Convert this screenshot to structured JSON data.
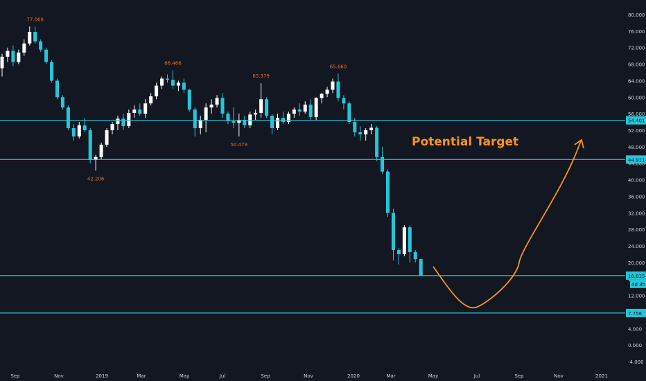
{
  "colors": {
    "background": "#131722",
    "up": "#ffffff",
    "down": "#26c6da",
    "level_line": "#26c6da",
    "annotation": "#f7931a",
    "price_label_bg": "#26c6da",
    "axis_text": "#d1d4dc",
    "peak_label": "#e0702a"
  },
  "chart_data": {
    "type": "candlestick",
    "title": "",
    "xlabel": "",
    "ylabel": "",
    "ylim": [
      -5,
      82
    ],
    "x_ticks": [
      "Sep",
      "Nov",
      "2019",
      "Mar",
      "May",
      "Jul",
      "Sep",
      "Nov",
      "2020",
      "Mar",
      "May",
      "Jul",
      "Sep",
      "Nov",
      "2021"
    ],
    "y_ticks": [
      "80.000",
      "76.000",
      "72.000",
      "68.000",
      "64.000",
      "60.000",
      "56.000",
      "52.000",
      "48.000",
      "44.000",
      "40.000",
      "36.000",
      "32.000",
      "28.000",
      "24.000",
      "20.000",
      "16.000",
      "12.000",
      "8.000",
      "4.000",
      "0.000",
      "-4.000"
    ],
    "candles": [
      {
        "o": 67.0,
        "h": 70.5,
        "l": 65.0,
        "c": 69.8
      },
      {
        "o": 69.8,
        "h": 72.0,
        "l": 68.5,
        "c": 71.2
      },
      {
        "o": 71.2,
        "h": 72.5,
        "l": 67.5,
        "c": 68.5
      },
      {
        "o": 68.5,
        "h": 71.5,
        "l": 68.0,
        "c": 70.8
      },
      {
        "o": 70.8,
        "h": 74.0,
        "l": 70.0,
        "c": 73.0
      },
      {
        "o": 73.0,
        "h": 77.1,
        "l": 72.5,
        "c": 75.8
      },
      {
        "o": 75.8,
        "h": 77.1,
        "l": 73.0,
        "c": 73.5
      },
      {
        "o": 73.5,
        "h": 74.0,
        "l": 71.0,
        "c": 71.5
      },
      {
        "o": 71.5,
        "h": 72.0,
        "l": 68.0,
        "c": 68.5
      },
      {
        "o": 68.5,
        "h": 69.0,
        "l": 63.5,
        "c": 64.0
      },
      {
        "o": 64.0,
        "h": 64.5,
        "l": 59.5,
        "c": 60.0
      },
      {
        "o": 60.0,
        "h": 60.5,
        "l": 57.0,
        "c": 57.5
      },
      {
        "o": 57.5,
        "h": 58.0,
        "l": 52.0,
        "c": 52.5
      },
      {
        "o": 52.5,
        "h": 53.5,
        "l": 49.5,
        "c": 50.5
      },
      {
        "o": 50.5,
        "h": 54.0,
        "l": 50.0,
        "c": 53.2
      },
      {
        "o": 53.2,
        "h": 55.0,
        "l": 51.5,
        "c": 52.0
      },
      {
        "o": 52.0,
        "h": 52.5,
        "l": 44.0,
        "c": 44.8
      },
      {
        "o": 44.8,
        "h": 46.0,
        "l": 42.2,
        "c": 45.5
      },
      {
        "o": 45.5,
        "h": 49.0,
        "l": 45.0,
        "c": 48.5
      },
      {
        "o": 48.5,
        "h": 52.5,
        "l": 48.0,
        "c": 52.0
      },
      {
        "o": 52.0,
        "h": 54.0,
        "l": 51.0,
        "c": 53.5
      },
      {
        "o": 53.5,
        "h": 55.5,
        "l": 52.0,
        "c": 54.8
      },
      {
        "o": 54.8,
        "h": 56.0,
        "l": 52.0,
        "c": 53.0
      },
      {
        "o": 53.0,
        "h": 57.0,
        "l": 52.5,
        "c": 56.2
      },
      {
        "o": 56.2,
        "h": 58.0,
        "l": 55.0,
        "c": 57.0
      },
      {
        "o": 57.0,
        "h": 58.5,
        "l": 55.5,
        "c": 56.0
      },
      {
        "o": 56.0,
        "h": 59.5,
        "l": 55.0,
        "c": 58.5
      },
      {
        "o": 58.5,
        "h": 61.0,
        "l": 58.0,
        "c": 60.2
      },
      {
        "o": 60.2,
        "h": 63.5,
        "l": 59.5,
        "c": 62.8
      },
      {
        "o": 62.8,
        "h": 65.0,
        "l": 62.0,
        "c": 64.5
      },
      {
        "o": 64.5,
        "h": 65.5,
        "l": 63.5,
        "c": 64.2
      },
      {
        "o": 64.2,
        "h": 66.5,
        "l": 62.0,
        "c": 62.8
      },
      {
        "o": 62.8,
        "h": 64.0,
        "l": 61.5,
        "c": 63.5
      },
      {
        "o": 63.5,
        "h": 64.5,
        "l": 61.0,
        "c": 61.8
      },
      {
        "o": 61.8,
        "h": 62.0,
        "l": 56.5,
        "c": 57.0
      },
      {
        "o": 57.0,
        "h": 57.5,
        "l": 50.5,
        "c": 52.5
      },
      {
        "o": 52.5,
        "h": 55.5,
        "l": 51.0,
        "c": 54.5
      },
      {
        "o": 54.5,
        "h": 58.5,
        "l": 51.5,
        "c": 57.5
      },
      {
        "o": 57.5,
        "h": 59.5,
        "l": 56.0,
        "c": 58.2
      },
      {
        "o": 58.2,
        "h": 60.5,
        "l": 57.5,
        "c": 59.8
      },
      {
        "o": 59.8,
        "h": 61.0,
        "l": 55.0,
        "c": 56.0
      },
      {
        "o": 56.0,
        "h": 56.5,
        "l": 53.5,
        "c": 54.2
      },
      {
        "o": 54.2,
        "h": 57.5,
        "l": 52.5,
        "c": 53.8
      },
      {
        "o": 53.8,
        "h": 56.0,
        "l": 50.5,
        "c": 54.5
      },
      {
        "o": 54.5,
        "h": 55.5,
        "l": 52.5,
        "c": 53.2
      },
      {
        "o": 53.2,
        "h": 56.5,
        "l": 52.5,
        "c": 55.8
      },
      {
        "o": 55.8,
        "h": 57.0,
        "l": 54.5,
        "c": 56.2
      },
      {
        "o": 56.2,
        "h": 63.4,
        "l": 55.0,
        "c": 59.5
      },
      {
        "o": 59.5,
        "h": 60.0,
        "l": 55.0,
        "c": 55.5
      },
      {
        "o": 55.5,
        "h": 56.0,
        "l": 51.0,
        "c": 52.5
      },
      {
        "o": 52.5,
        "h": 56.0,
        "l": 52.0,
        "c": 55.0
      },
      {
        "o": 55.0,
        "h": 56.5,
        "l": 53.5,
        "c": 54.0
      },
      {
        "o": 54.0,
        "h": 56.5,
        "l": 53.5,
        "c": 56.0
      },
      {
        "o": 56.0,
        "h": 57.5,
        "l": 55.0,
        "c": 57.0
      },
      {
        "o": 57.0,
        "h": 58.5,
        "l": 55.5,
        "c": 56.5
      },
      {
        "o": 56.5,
        "h": 59.0,
        "l": 56.0,
        "c": 58.2
      },
      {
        "o": 58.2,
        "h": 59.5,
        "l": 54.5,
        "c": 55.2
      },
      {
        "o": 55.2,
        "h": 60.0,
        "l": 54.5,
        "c": 59.8
      },
      {
        "o": 59.8,
        "h": 61.0,
        "l": 58.5,
        "c": 60.8
      },
      {
        "o": 60.8,
        "h": 62.5,
        "l": 60.0,
        "c": 61.8
      },
      {
        "o": 61.8,
        "h": 64.5,
        "l": 61.0,
        "c": 63.8
      },
      {
        "o": 63.8,
        "h": 65.7,
        "l": 59.0,
        "c": 59.8
      },
      {
        "o": 59.8,
        "h": 60.5,
        "l": 57.0,
        "c": 58.5
      },
      {
        "o": 58.5,
        "h": 59.0,
        "l": 53.5,
        "c": 54.0
      },
      {
        "o": 54.0,
        "h": 55.0,
        "l": 50.5,
        "c": 51.5
      },
      {
        "o": 51.5,
        "h": 53.0,
        "l": 49.5,
        "c": 51.0
      },
      {
        "o": 51.0,
        "h": 52.5,
        "l": 49.5,
        "c": 52.0
      },
      {
        "o": 52.0,
        "h": 53.5,
        "l": 51.0,
        "c": 52.6
      },
      {
        "o": 52.6,
        "h": 53.0,
        "l": 44.5,
        "c": 45.5
      },
      {
        "o": 45.5,
        "h": 48.0,
        "l": 41.5,
        "c": 42.0
      },
      {
        "o": 42.0,
        "h": 42.5,
        "l": 31.0,
        "c": 32.0
      },
      {
        "o": 32.0,
        "h": 33.0,
        "l": 20.5,
        "c": 23.0
      },
      {
        "o": 23.0,
        "h": 23.5,
        "l": 19.5,
        "c": 22.0
      },
      {
        "o": 22.0,
        "h": 29.0,
        "l": 21.5,
        "c": 28.5
      },
      {
        "o": 28.5,
        "h": 29.0,
        "l": 20.0,
        "c": 22.5
      },
      {
        "o": 22.5,
        "h": 23.0,
        "l": 20.0,
        "c": 20.8
      },
      {
        "o": 20.8,
        "h": 21.0,
        "l": 16.8,
        "c": 16.8
      }
    ],
    "levels": [
      {
        "value": 54.401,
        "label": "54.401"
      },
      {
        "value": 44.911,
        "label": "44.911"
      },
      {
        "value": 16.815,
        "label": "16.815"
      },
      {
        "value": 7.756,
        "label": "7.756"
      }
    ],
    "peak_labels": [
      {
        "text": "77.068",
        "candle": 6,
        "position": "above"
      },
      {
        "text": "42.206",
        "candle": 17,
        "position": "below"
      },
      {
        "text": "66.466",
        "candle": 31,
        "position": "above"
      },
      {
        "text": "50.479",
        "candle": 43,
        "position": "below"
      },
      {
        "text": "63.379",
        "candle": 47,
        "position": "above"
      },
      {
        "text": "65.660",
        "candle": 61,
        "position": "above"
      }
    ],
    "countdown": "4d 3h",
    "annotation": {
      "text": "Potential Target",
      "projection": [
        {
          "month": "May 2020",
          "value": 19
        },
        {
          "month": "Jul 2020",
          "value": 9.5
        },
        {
          "month": "Sep 2020",
          "value": 20
        },
        {
          "month": "Nov 2020",
          "value": 38
        },
        {
          "month": "Dec 2020",
          "value": 49.5
        }
      ]
    }
  }
}
